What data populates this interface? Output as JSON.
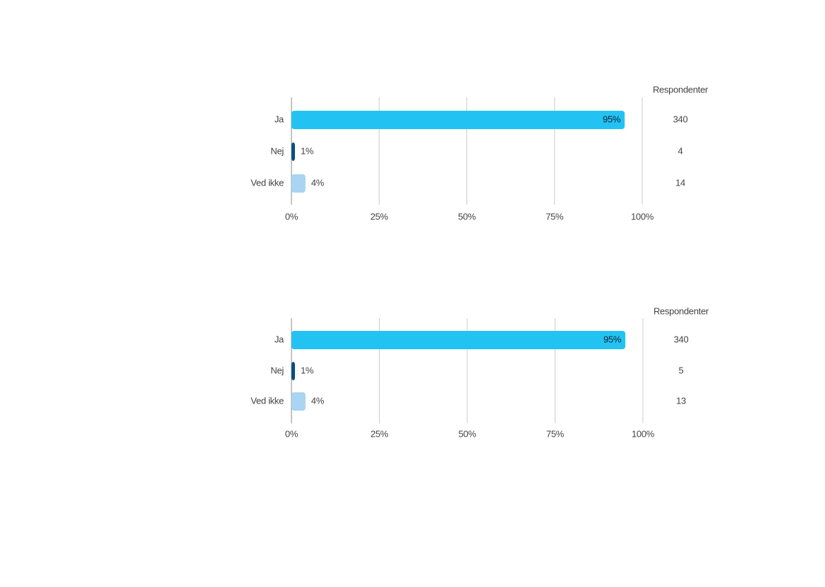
{
  "chart_data": [
    {
      "type": "bar",
      "categories": [
        "Ja",
        "Nej",
        "Ved ikke"
      ],
      "values": [
        95,
        1,
        4
      ],
      "value_labels": [
        "95%",
        "1%",
        "4%"
      ],
      "colors": [
        "#22c3f3",
        "#0b4f80",
        "#a9d4f2"
      ],
      "xlim": [
        0,
        100
      ],
      "xticks": [
        {
          "value": 0,
          "label": "0%"
        },
        {
          "value": 25,
          "label": "25%"
        },
        {
          "value": 50,
          "label": "50%"
        },
        {
          "value": 75,
          "label": "75%"
        },
        {
          "value": 100,
          "label": "100%"
        }
      ],
      "grid": true,
      "respondents_label": "Respondenter",
      "respondents": [
        340,
        4,
        14
      ]
    },
    {
      "type": "bar",
      "categories": [
        "Ja",
        "Nej",
        "Ved ikke"
      ],
      "values": [
        95,
        1,
        4
      ],
      "value_labels": [
        "95%",
        "1%",
        "4%"
      ],
      "colors": [
        "#22c3f3",
        "#0b4f80",
        "#a9d4f2"
      ],
      "xlim": [
        0,
        100
      ],
      "xticks": [
        {
          "value": 0,
          "label": "0%"
        },
        {
          "value": 25,
          "label": "25%"
        },
        {
          "value": 50,
          "label": "50%"
        },
        {
          "value": 75,
          "label": "75%"
        },
        {
          "value": 100,
          "label": "100%"
        }
      ],
      "grid": true,
      "respondents_label": "Respondenter",
      "respondents": [
        340,
        5,
        13
      ]
    }
  ]
}
